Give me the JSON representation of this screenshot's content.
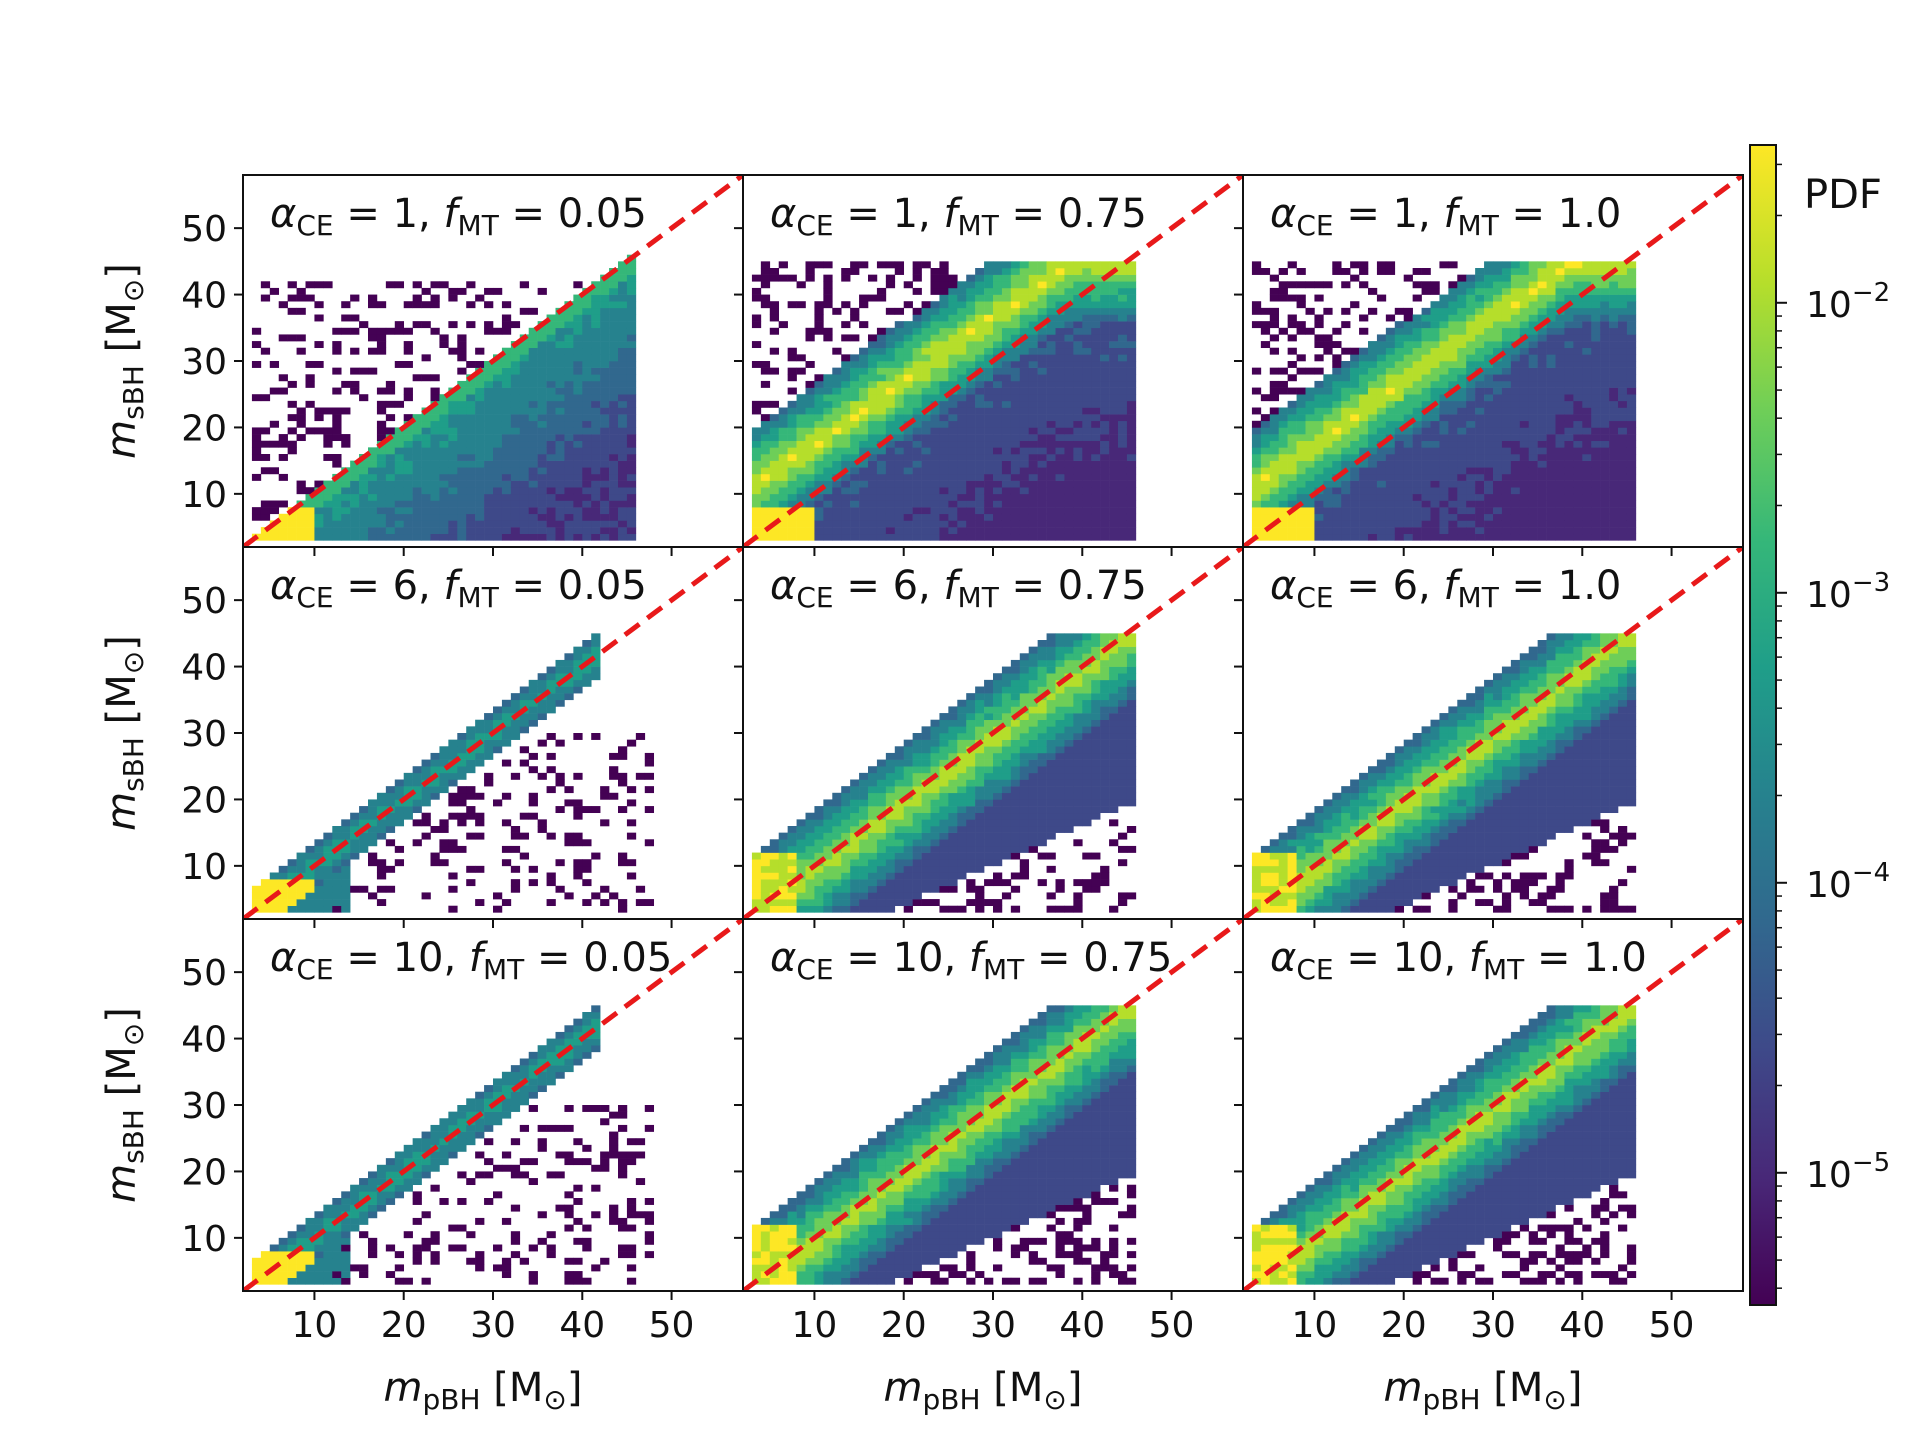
{
  "chart_data": {
    "type": "heatmap",
    "layout": "3x3 grid",
    "xlabel": {
      "symbol": "m",
      "subscript": "pBH",
      "unit": "[M",
      "unit_sub": "⊙",
      "unit_close": "]"
    },
    "ylabel": {
      "symbol": "m",
      "subscript": "sBH",
      "unit": "[M",
      "unit_sub": "⊙",
      "unit_close": "]"
    },
    "xlim": [
      2,
      58
    ],
    "ylim": [
      2,
      58
    ],
    "xticks": [
      "10",
      "20",
      "30",
      "40",
      "50"
    ],
    "yticks": [
      "10",
      "20",
      "30",
      "40",
      "50"
    ],
    "xtick_values": [
      10,
      20,
      30,
      40,
      50
    ],
    "ytick_values": [
      10,
      20,
      30,
      40,
      50
    ],
    "reference_line": {
      "style": "dashed",
      "color": "#e8191a",
      "equation": "y = x"
    },
    "panels": [
      {
        "alpha_ce": "1",
        "f_mt": "0.05",
        "pattern": "below_diagonal"
      },
      {
        "alpha_ce": "1",
        "f_mt": "0.75",
        "pattern": "above_diagonal"
      },
      {
        "alpha_ce": "1",
        "f_mt": "1.0",
        "pattern": "above_diagonal"
      },
      {
        "alpha_ce": "6",
        "f_mt": "0.05",
        "pattern": "narrow_diagonal"
      },
      {
        "alpha_ce": "6",
        "f_mt": "0.75",
        "pattern": "band"
      },
      {
        "alpha_ce": "6",
        "f_mt": "1.0",
        "pattern": "band"
      },
      {
        "alpha_ce": "10",
        "f_mt": "0.05",
        "pattern": "narrow_diagonal"
      },
      {
        "alpha_ce": "10",
        "f_mt": "0.75",
        "pattern": "band"
      },
      {
        "alpha_ce": "10",
        "f_mt": "1.0",
        "pattern": "band"
      }
    ],
    "colorbar": {
      "label": "PDF",
      "scale": "log",
      "range": [
        3.5e-06,
        0.035
      ],
      "ticks": [
        {
          "value": 0.01,
          "base": "10",
          "exp": "−2"
        },
        {
          "value": 0.001,
          "base": "10",
          "exp": "−3"
        },
        {
          "value": 0.0001,
          "base": "10",
          "exp": "−4"
        },
        {
          "value": 1e-05,
          "base": "10",
          "exp": "−5"
        }
      ],
      "colormap": [
        "#440154",
        "#482878",
        "#3e4989",
        "#31688e",
        "#26828e",
        "#1f9e89",
        "#35b779",
        "#6ece58",
        "#b5de2b",
        "#fde725"
      ]
    }
  }
}
